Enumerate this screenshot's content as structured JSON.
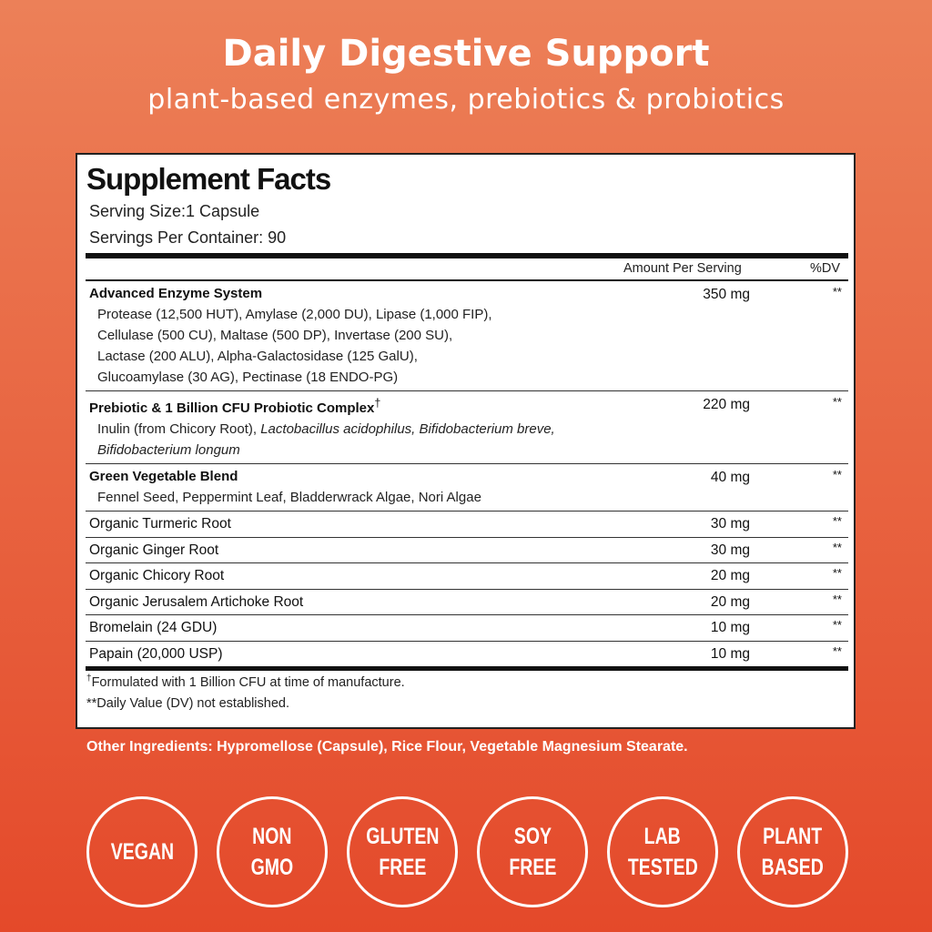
{
  "header": {
    "title": "Daily Digestive Support",
    "subtitle": "plant-based enzymes, prebiotics & probiotics"
  },
  "facts": {
    "title": "Supplement Facts",
    "serving_size": "Serving Size:1 Capsule",
    "servings": "Servings Per Container: 90",
    "columns": {
      "amount": "Amount Per Serving",
      "dv": "%DV"
    },
    "rows": [
      {
        "name": "Advanced Enzyme System",
        "amount": "350 mg",
        "dv": "**",
        "lines": [
          [
            {
              "text": "Protease (12,500 HUT), Amylase (2,000 DU), Lipase (1,000 FIP),"
            }
          ],
          [
            {
              "text": "Cellulase (500 CU), Maltase (500 DP), Invertase (200 SU),"
            }
          ],
          [
            {
              "text": "Lactase (200 ALU), Alpha-Galactosidase (125 GalU),"
            }
          ],
          [
            {
              "text": "Glucoamylase (30 AG), Pectinase (18 ENDO-PG)"
            }
          ]
        ]
      },
      {
        "name": "Prebiotic & 1 Billion CFU Probiotic Complex",
        "mark": "†",
        "amount": "220 mg",
        "dv": "**",
        "lines": [
          [
            {
              "text": "Inulin (from Chicory Root), "
            },
            {
              "text": "Lactobacillus acidophilus, Bifidobacterium breve,",
              "italic": true
            }
          ],
          [
            {
              "text": "Bifidobacterium longum",
              "italic": true
            }
          ]
        ]
      },
      {
        "name": "Green Vegetable Blend",
        "amount": "40 mg",
        "dv": "**",
        "lines": [
          [
            {
              "text": "Fennel Seed, Peppermint Leaf, Bladderwrack Algae, Nori Algae"
            }
          ]
        ]
      },
      {
        "name": "Organic Turmeric Root",
        "amount": "30 mg",
        "dv": "**",
        "plain": true
      },
      {
        "name": "Organic Ginger Root",
        "amount": "30 mg",
        "dv": "**",
        "plain": true
      },
      {
        "name": "Organic Chicory Root",
        "amount": "20 mg",
        "dv": "**",
        "plain": true
      },
      {
        "name": "Organic Jerusalem Artichoke Root",
        "amount": "20 mg",
        "dv": "**",
        "plain": true
      },
      {
        "name": "Bromelain (24 GDU)",
        "amount": "10 mg",
        "dv": "**",
        "plain": true
      },
      {
        "name": "Papain (20,000 USP)",
        "amount": "10 mg",
        "dv": "**",
        "plain": true
      }
    ],
    "footnotes": [
      {
        "mark": "†",
        "text": "Formulated with 1 Billion CFU at time of manufacture."
      },
      {
        "mark": "**",
        "text": "Daily Value (DV) not established."
      }
    ]
  },
  "other_ingredients": "Other Ingredients: Hypromellose (Capsule), Rice Flour, Vegetable Magnesium Stearate.",
  "badges": [
    [
      "VEGAN"
    ],
    [
      "NON",
      "GMO"
    ],
    [
      "GLUTEN",
      "FREE"
    ],
    [
      "SOY",
      "FREE"
    ],
    [
      "LAB",
      "TESTED"
    ],
    [
      "PLANT",
      "BASED"
    ]
  ]
}
